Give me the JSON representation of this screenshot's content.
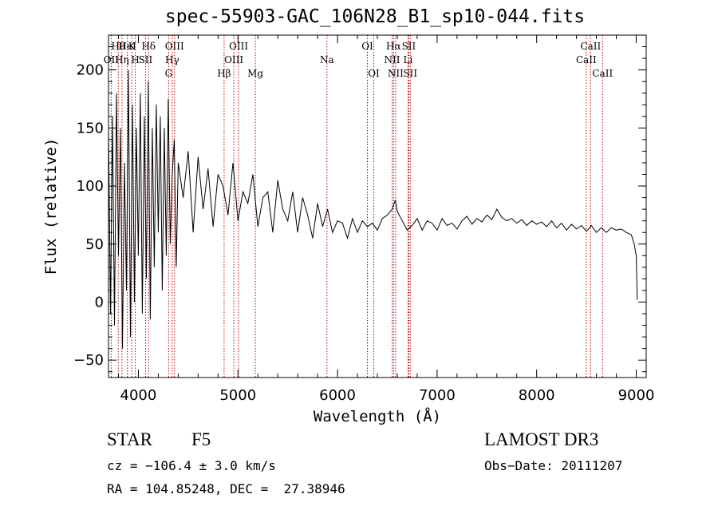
{
  "chart_data": {
    "type": "line",
    "title": "spec-55903-GAC_106N28_B1_sp10-044.fits",
    "xlabel": "Wavelength (Å)",
    "ylabel": "Flux (relative)",
    "xlim": [
      3700,
      9100
    ],
    "ylim": [
      -65,
      230
    ],
    "x_ticks": [
      4000,
      5000,
      6000,
      7000,
      8000,
      9000
    ],
    "y_ticks": [
      -50,
      0,
      50,
      100,
      150,
      200
    ],
    "x_tick_labels": [
      "4000",
      "5000",
      "6000",
      "7000",
      "8000",
      "9000"
    ],
    "y_tick_labels": [
      "−50",
      "0",
      "50",
      "100",
      "150",
      "200"
    ],
    "grid": false,
    "series": [
      {
        "name": "flux",
        "x": [
          3700,
          3720,
          3740,
          3760,
          3780,
          3800,
          3820,
          3840,
          3860,
          3880,
          3900,
          3920,
          3940,
          3960,
          3980,
          4000,
          4020,
          4040,
          4060,
          4080,
          4100,
          4120,
          4140,
          4160,
          4180,
          4200,
          4220,
          4240,
          4260,
          4280,
          4300,
          4320,
          4340,
          4360,
          4380,
          4400,
          4450,
          4500,
          4550,
          4600,
          4650,
          4700,
          4750,
          4800,
          4850,
          4900,
          4950,
          5000,
          5050,
          5100,
          5150,
          5200,
          5250,
          5300,
          5350,
          5400,
          5450,
          5500,
          5550,
          5600,
          5650,
          5700,
          5750,
          5800,
          5850,
          5900,
          5950,
          6000,
          6050,
          6100,
          6150,
          6200,
          6250,
          6300,
          6350,
          6400,
          6450,
          6500,
          6550,
          6580,
          6600,
          6650,
          6700,
          6750,
          6800,
          6850,
          6900,
          6950,
          7000,
          7050,
          7100,
          7150,
          7200,
          7250,
          7300,
          7350,
          7400,
          7450,
          7500,
          7550,
          7600,
          7650,
          7700,
          7750,
          7800,
          7850,
          7900,
          7950,
          8000,
          8050,
          8100,
          8150,
          8200,
          8250,
          8300,
          8350,
          8400,
          8450,
          8500,
          8550,
          8600,
          8650,
          8700,
          8750,
          8800,
          8850,
          8900,
          8950,
          8980,
          9000,
          9010
        ],
        "y": [
          150,
          -10,
          160,
          -20,
          180,
          40,
          150,
          -40,
          120,
          10,
          200,
          -30,
          170,
          0,
          150,
          40,
          180,
          -10,
          160,
          20,
          190,
          -15,
          150,
          30,
          170,
          60,
          160,
          10,
          150,
          40,
          175,
          50,
          110,
          140,
          30,
          120,
          90,
          130,
          60,
          125,
          80,
          115,
          65,
          110,
          100,
          75,
          120,
          70,
          95,
          85,
          110,
          65,
          90,
          95,
          60,
          105,
          80,
          70,
          95,
          60,
          90,
          75,
          55,
          85,
          65,
          80,
          60,
          70,
          68,
          55,
          72,
          60,
          70,
          65,
          68,
          62,
          72,
          75,
          80,
          88,
          78,
          70,
          62,
          66,
          72,
          62,
          70,
          68,
          62,
          72,
          66,
          68,
          63,
          70,
          74,
          67,
          72,
          69,
          75,
          71,
          80,
          73,
          70,
          72,
          68,
          71,
          66,
          70,
          67,
          69,
          65,
          70,
          64,
          68,
          62,
          67,
          63,
          66,
          61,
          66,
          60,
          64,
          60,
          64,
          62,
          63,
          60,
          58,
          50,
          40,
          2
        ],
        "color": "#000000"
      }
    ],
    "line_markers": [
      {
        "label": "OII",
        "x": 3727,
        "row": 2
      },
      {
        "label": "Hθ",
        "x": 3798,
        "row": 1
      },
      {
        "label": "Hη",
        "x": 3835,
        "row": 2
      },
      {
        "label": "HeI",
        "x": 3889,
        "row": 1
      },
      {
        "label": "K",
        "x": 3934,
        "row": 1
      },
      {
        "label": "H",
        "x": 3969,
        "row": 2
      },
      {
        "label": "SII",
        "x": 4072,
        "row": 2
      },
      {
        "label": "Hδ",
        "x": 4102,
        "row": 1
      },
      {
        "label": "G",
        "x": 4304,
        "row": 3
      },
      {
        "label": "Hγ",
        "x": 4340,
        "row": 2
      },
      {
        "label": "OIII",
        "x": 4363,
        "row": 1
      },
      {
        "label": "Hβ",
        "x": 4861,
        "row": 3
      },
      {
        "label": "OIII",
        "x": 4959,
        "row": 2
      },
      {
        "label": "OIII",
        "x": 5007,
        "row": 1
      },
      {
        "label": "Mg",
        "x": 5175,
        "row": 3
      },
      {
        "label": "Na",
        "x": 5894,
        "row": 2
      },
      {
        "label": "OI",
        "x": 6300,
        "row": 1
      },
      {
        "label": "OI",
        "x": 6364,
        "row": 3
      },
      {
        "label": "NII",
        "x": 6548,
        "row": 2
      },
      {
        "label": "Hα",
        "x": 6563,
        "row": 1
      },
      {
        "label": "NII",
        "x": 6583,
        "row": 3
      },
      {
        "label": "Li",
        "x": 6708,
        "row": 2
      },
      {
        "label": "SII",
        "x": 6716,
        "row": 1
      },
      {
        "label": "SII",
        "x": 6731,
        "row": 3
      },
      {
        "label": "CaII",
        "x": 8498,
        "row": 2
      },
      {
        "label": "CaII",
        "x": 8542,
        "row": 1
      },
      {
        "label": "CaII",
        "x": 8662,
        "row": 3
      }
    ]
  },
  "info": {
    "class": "STAR",
    "subclass": "F5",
    "survey": "LAMOST DR3",
    "cz": "cz = −106.4 ± 3.0 km/s",
    "obs_date": "Obs−Date: 20111207",
    "coords": "RA = 104.85248, DEC =  27.38946"
  }
}
